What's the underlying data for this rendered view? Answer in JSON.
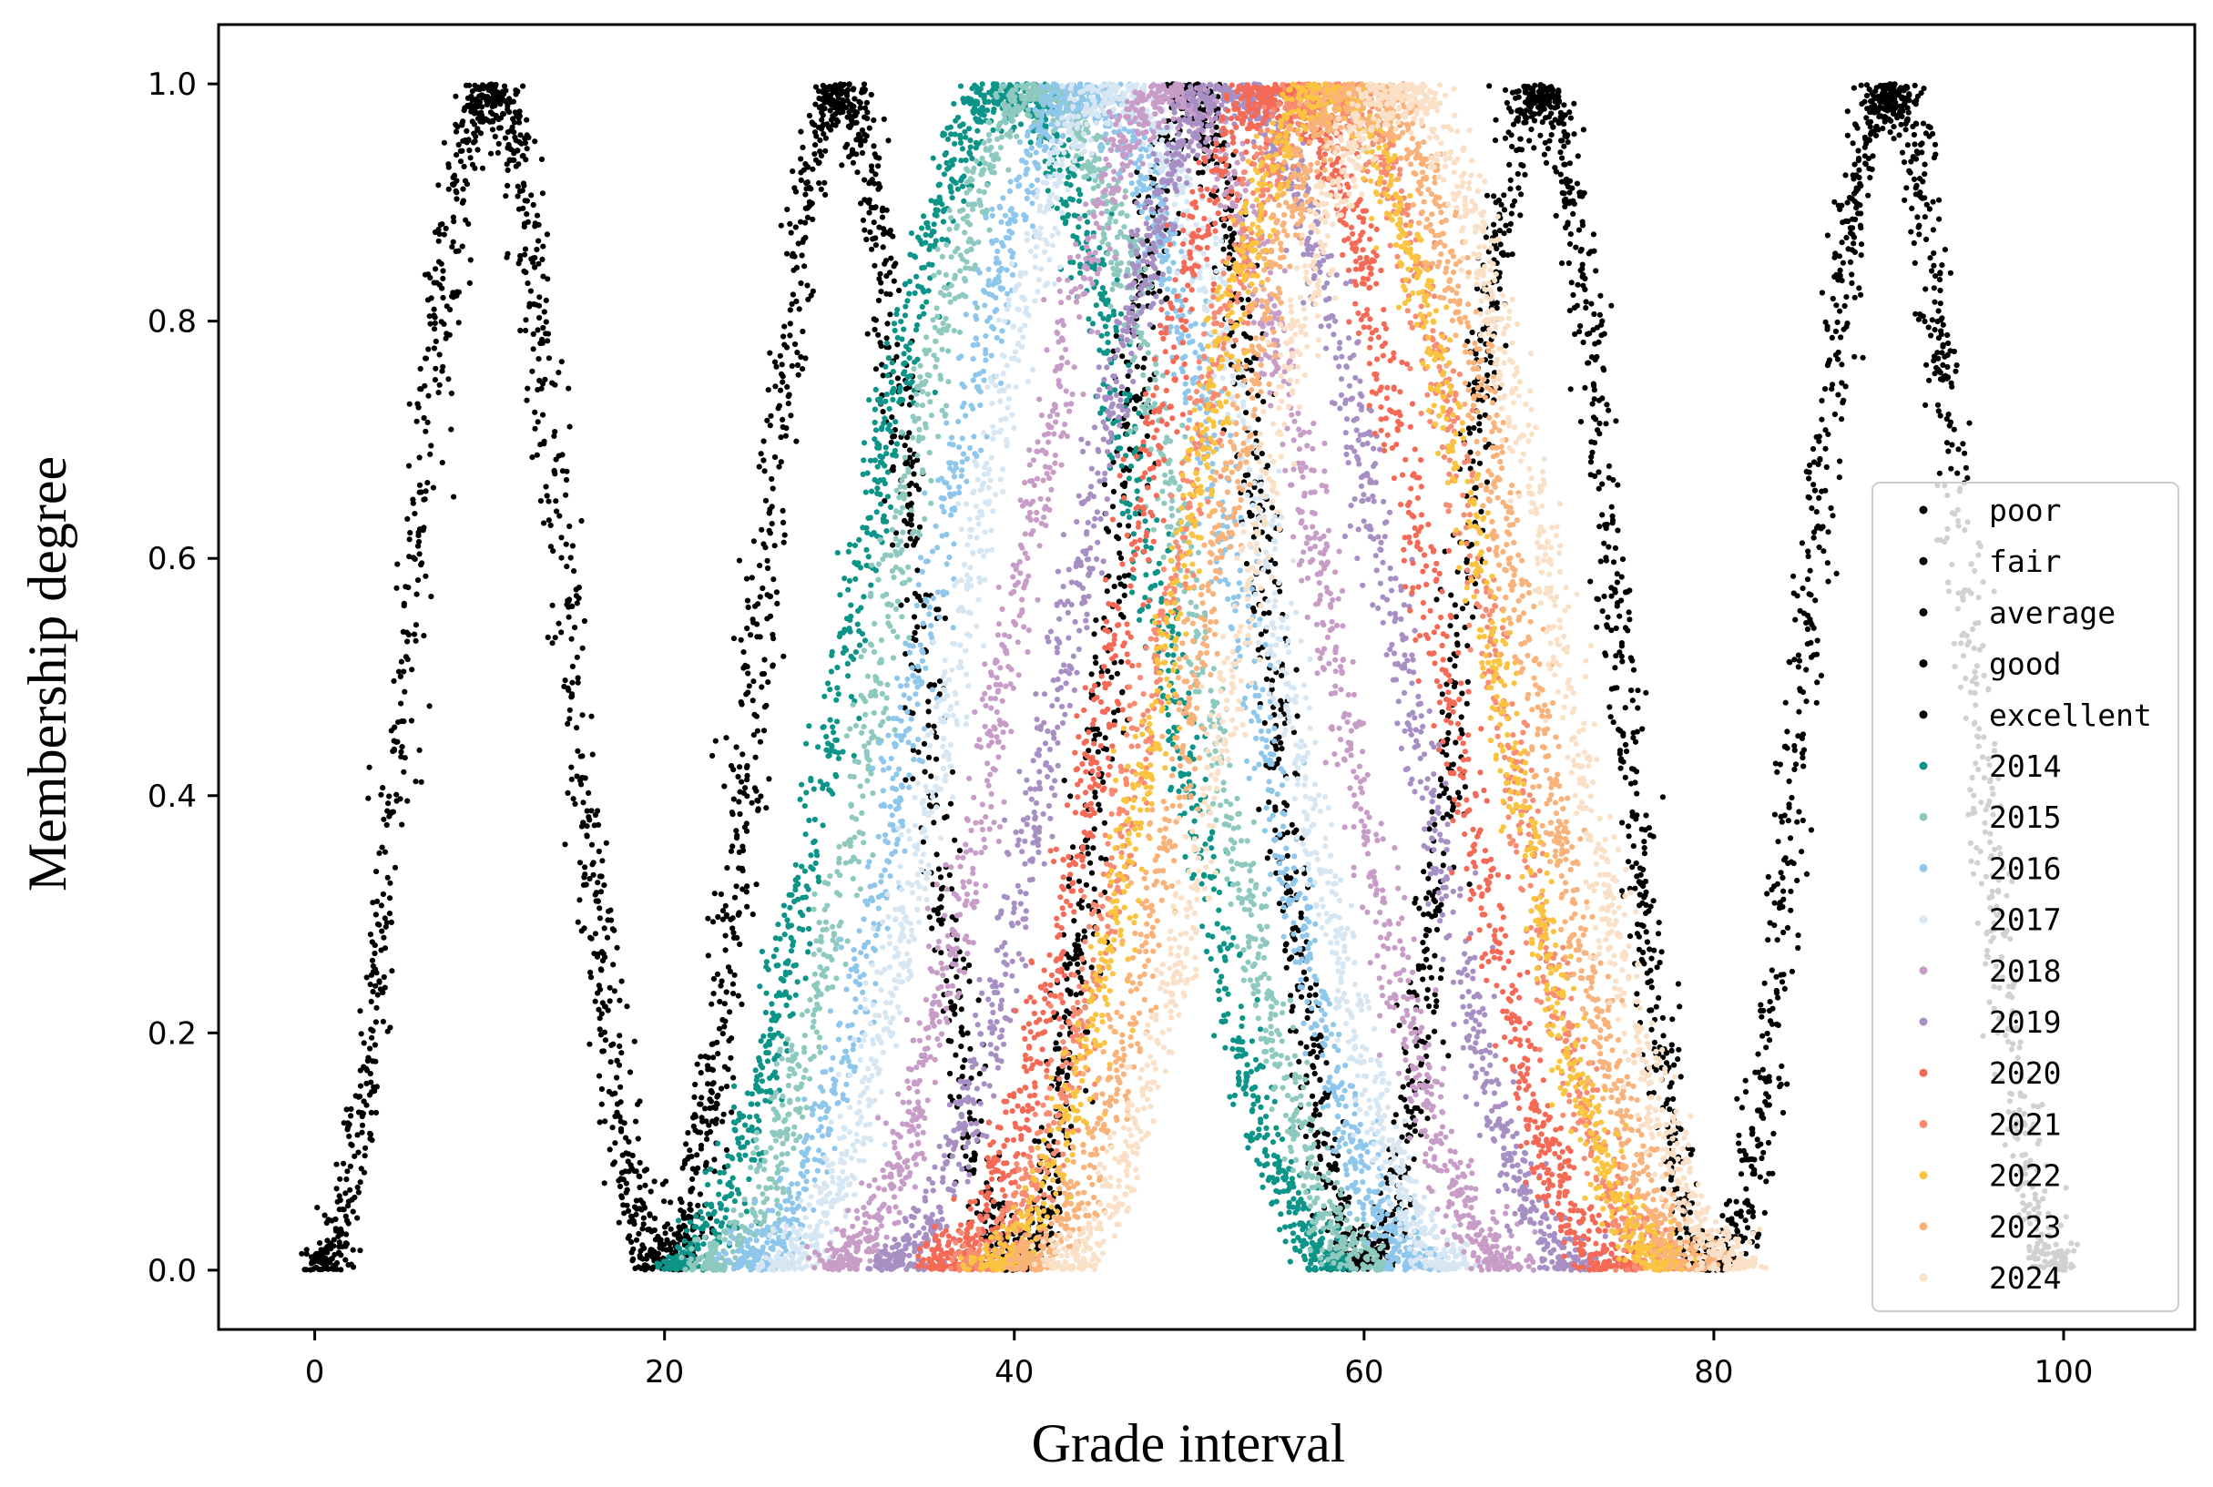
{
  "chart_data": {
    "type": "scatter",
    "title": "",
    "xlabel": "Grade interval",
    "ylabel": "Membership degree",
    "xlim": [
      -5.5,
      107.5
    ],
    "ylim": [
      -0.05,
      1.05
    ],
    "xticks": [
      0,
      20,
      40,
      60,
      80,
      100
    ],
    "xtick_labels": [
      "0",
      "20",
      "40",
      "60",
      "80",
      "100"
    ],
    "yticks": [
      0.0,
      0.2,
      0.4,
      0.6,
      0.8,
      1.0
    ],
    "ytick_labels": [
      "0.0",
      "0.2",
      "0.4",
      "0.6",
      "0.8",
      "1.0"
    ],
    "grid": false,
    "legend_position": "lower-right",
    "series": [
      {
        "name": "poor",
        "color": "#000000",
        "center": 10,
        "support": [
          0,
          20
        ],
        "peak": 1.0
      },
      {
        "name": "fair",
        "color": "#000000",
        "center": 30,
        "support": [
          20,
          40
        ],
        "peak": 1.0
      },
      {
        "name": "average",
        "color": "#000000",
        "center": 50,
        "support": [
          40,
          60
        ],
        "peak": 1.0
      },
      {
        "name": "good",
        "color": "#000000",
        "center": 70,
        "support": [
          60,
          80
        ],
        "peak": 1.0
      },
      {
        "name": "excellent",
        "color": "#000000",
        "center": 90,
        "support": [
          80,
          100
        ],
        "peak": 1.0
      },
      {
        "name": "2014",
        "color": "#0c9488",
        "center": 39.5,
        "support": [
          20,
          59
        ],
        "peak": 1.0
      },
      {
        "name": "2015",
        "color": "#8ec9bf",
        "center": 41.5,
        "support": [
          22,
          61
        ],
        "peak": 1.0
      },
      {
        "name": "2016",
        "color": "#8fc7ec",
        "center": 44,
        "support": [
          24,
          64
        ],
        "peak": 1.0
      },
      {
        "name": "2017",
        "color": "#d6e7f3",
        "center": 46,
        "support": [
          26,
          66
        ],
        "peak": 1.0
      },
      {
        "name": "2018",
        "color": "#c79dc8",
        "center": 49,
        "support": [
          29,
          69
        ],
        "peak": 1.0
      },
      {
        "name": "2019",
        "color": "#a78fc4",
        "center": 52.5,
        "support": [
          32,
          73
        ],
        "peak": 1.0
      },
      {
        "name": "2020",
        "color": "#f46a56",
        "center": 55,
        "support": [
          35,
          75
        ],
        "peak": 1.0
      },
      {
        "name": "2021",
        "color": "#f88c72",
        "center": 58,
        "support": [
          37,
          78
        ],
        "peak": 1.0
      },
      {
        "name": "2022",
        "color": "#fbc440",
        "center": 58,
        "support": [
          38,
          78
        ],
        "peak": 1.0
      },
      {
        "name": "2023",
        "color": "#f9b27a",
        "center": 60,
        "support": [
          40,
          80
        ],
        "peak": 1.0
      },
      {
        "name": "2024",
        "color": "#fbe0c8",
        "center": 62,
        "support": [
          42,
          82
        ],
        "peak": 1.0
      }
    ]
  }
}
